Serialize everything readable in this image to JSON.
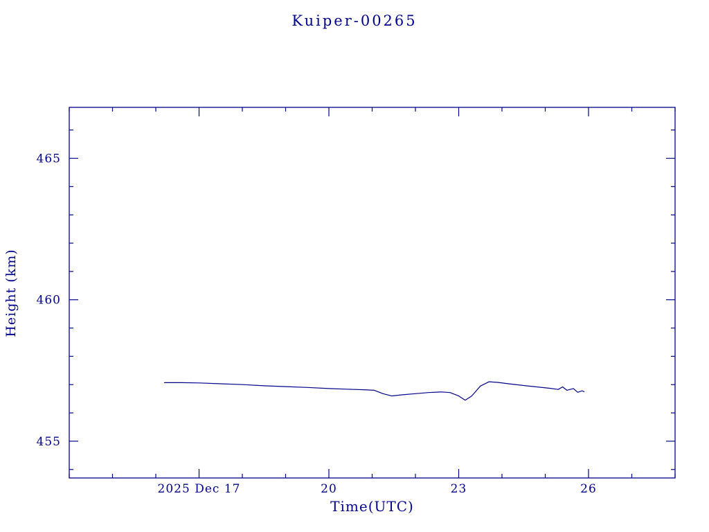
{
  "colors": {
    "accent": "#00008b",
    "background": "#ffffff"
  },
  "chart_data": {
    "type": "line",
    "title": "Kuiper-00265",
    "xlabel": "Time(UTC)",
    "ylabel": "Height (km)",
    "grid": false,
    "legend": "none",
    "xlim": [
      14,
      28
    ],
    "ylim": [
      453.7,
      466.8
    ],
    "x_ticks": [
      {
        "value": 17,
        "label": "2025 Dec 17"
      },
      {
        "value": 20,
        "label": "20"
      },
      {
        "value": 23,
        "label": "23"
      },
      {
        "value": 26,
        "label": "26"
      }
    ],
    "y_ticks": [
      {
        "value": 455,
        "label": "455"
      },
      {
        "value": 460,
        "label": "460"
      },
      {
        "value": 465,
        "label": "465"
      }
    ],
    "minor_x_step": 1,
    "minor_y_step": 1,
    "line_color": "#00008b",
    "series": [
      {
        "name": "height",
        "points": [
          [
            16.2,
            457.07
          ],
          [
            16.6,
            457.07
          ],
          [
            17.0,
            457.06
          ],
          [
            17.5,
            457.03
          ],
          [
            18.0,
            457.0
          ],
          [
            18.5,
            456.96
          ],
          [
            19.0,
            456.93
          ],
          [
            19.5,
            456.9
          ],
          [
            20.0,
            456.86
          ],
          [
            20.4,
            456.84
          ],
          [
            20.8,
            456.82
          ],
          [
            21.05,
            456.8
          ],
          [
            21.25,
            456.68
          ],
          [
            21.45,
            456.6
          ],
          [
            21.7,
            456.64
          ],
          [
            22.0,
            456.68
          ],
          [
            22.3,
            456.72
          ],
          [
            22.6,
            456.74
          ],
          [
            22.8,
            456.72
          ],
          [
            23.0,
            456.6
          ],
          [
            23.15,
            456.45
          ],
          [
            23.3,
            456.6
          ],
          [
            23.5,
            456.95
          ],
          [
            23.7,
            457.1
          ],
          [
            23.9,
            457.08
          ],
          [
            24.2,
            457.02
          ],
          [
            24.5,
            456.97
          ],
          [
            24.8,
            456.92
          ],
          [
            25.1,
            456.87
          ],
          [
            25.3,
            456.83
          ],
          [
            25.4,
            456.92
          ],
          [
            25.5,
            456.8
          ],
          [
            25.65,
            456.86
          ],
          [
            25.75,
            456.73
          ],
          [
            25.85,
            456.78
          ],
          [
            25.9,
            456.75
          ]
        ]
      }
    ]
  }
}
